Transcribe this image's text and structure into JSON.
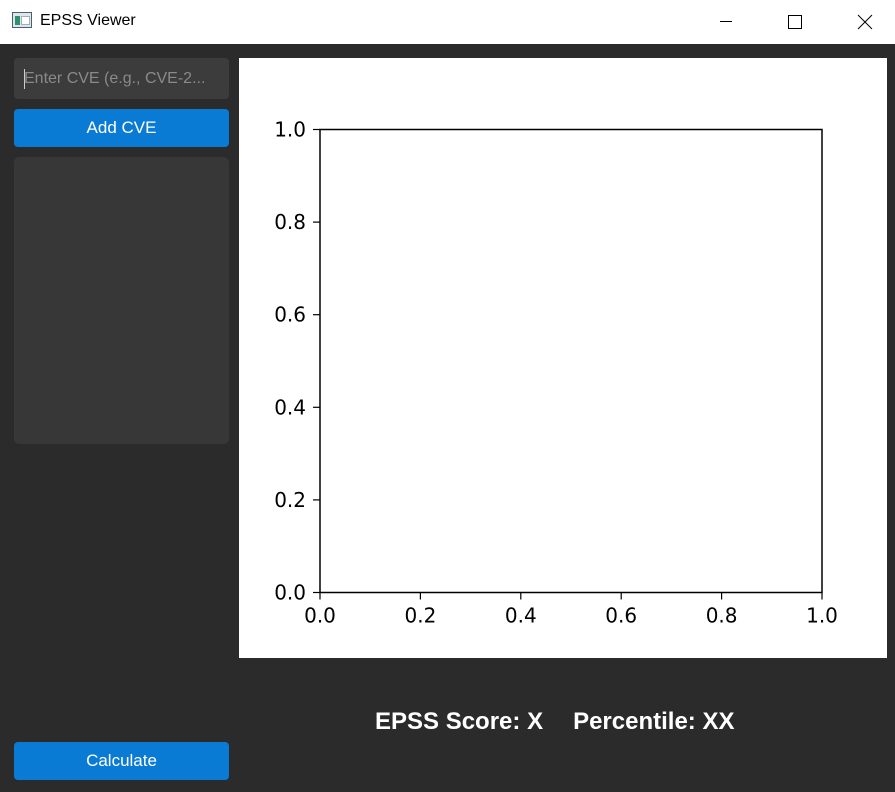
{
  "window": {
    "title": "EPSS Viewer",
    "icon": "app-window-icon",
    "controls": [
      "minimize-icon",
      "maximize-icon",
      "close-icon"
    ]
  },
  "sidebar": {
    "cve_input": {
      "value": "",
      "placeholder": "Enter CVE (e.g., CVE-2..."
    },
    "add_button": "Add CVE",
    "cve_list_items": [],
    "calculate_button": "Calculate"
  },
  "chart_data": {
    "type": "line",
    "title": "",
    "xlabel": "",
    "ylabel": "",
    "series": [],
    "xlim": [
      0,
      1
    ],
    "ylim": [
      0,
      1
    ],
    "xticks": [
      0.0,
      0.2,
      0.4,
      0.6,
      0.8,
      1.0
    ],
    "yticks": [
      0.0,
      0.2,
      0.4,
      0.6,
      0.8,
      1.0
    ],
    "xtick_labels": [
      "0.0",
      "0.2",
      "0.4",
      "0.6",
      "0.8",
      "1.0"
    ],
    "ytick_labels": [
      "0.0",
      "0.2",
      "0.4",
      "0.6",
      "0.8",
      "1.0"
    ],
    "grid": false
  },
  "results": {
    "score_label": "EPSS Score: X",
    "percentile_label": "Percentile: XX"
  },
  "colors": {
    "background": "#2b2b2b",
    "accent": "#0a7bd4",
    "input_bg": "#3c3c3c",
    "list_bg": "#373737"
  }
}
